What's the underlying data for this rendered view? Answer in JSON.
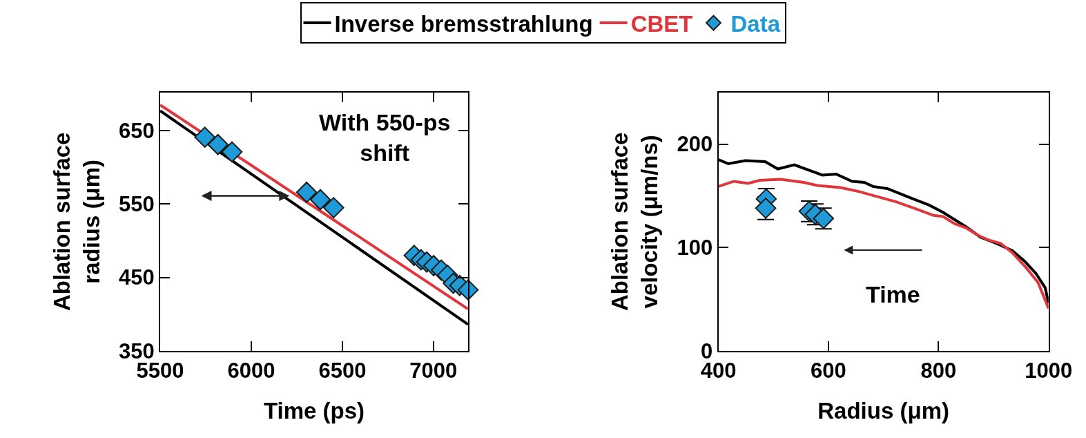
{
  "chart_data": [
    {
      "type": "line",
      "xlabel": "Time (ps)",
      "ylabel": "Ablation surface\nradius (μm)",
      "xlim": [
        5500,
        7190
      ],
      "xticks": [
        5500,
        6000,
        6500,
        7000
      ],
      "ylim": [
        350,
        702
      ],
      "yticks": [
        350,
        450,
        550,
        650
      ],
      "legend": "top",
      "annotations": [
        "With 550-ps\nshift"
      ],
      "series": [
        {
          "name": "Inverse bremsstrahlung",
          "color": "#000000",
          "marker": "none",
          "x": [
            5500,
            7190
          ],
          "values": [
            677,
            386
          ]
        },
        {
          "name": "CBET",
          "color": "#e0373c",
          "marker": "none",
          "x": [
            5500,
            7190
          ],
          "values": [
            685,
            407
          ]
        },
        {
          "name": "Data",
          "color": "#1f9ad6",
          "type": "scatter",
          "marker": "diamond",
          "x": [
            5745,
            5817,
            5894,
            6304,
            6379,
            6452,
            6894,
            6932,
            6963,
            7001,
            7043,
            7077,
            7109,
            7144,
            7190
          ],
          "values": [
            641,
            631,
            621,
            566,
            556,
            545,
            480,
            474,
            471,
            466,
            460,
            453,
            442,
            439,
            433
          ]
        }
      ]
    },
    {
      "type": "line",
      "xlabel": "Radius (μm)",
      "ylabel": "Ablation surface\nvelocity (μm/ns)",
      "xlim": [
        400,
        1000
      ],
      "xticks": [
        400,
        600,
        800,
        1000
      ],
      "ylim": [
        0,
        250
      ],
      "yticks": [
        0,
        100,
        200
      ],
      "annotations": [
        "Time"
      ],
      "series": [
        {
          "color": "#000000",
          "marker": "none",
          "x": [
            400,
            418,
            449,
            485,
            508,
            538,
            589,
            614,
            643,
            665,
            681,
            707,
            749,
            783,
            808,
            850,
            876,
            905,
            934,
            956,
            977,
            994,
            1000
          ],
          "values": [
            185,
            181,
            184,
            183,
            176,
            180,
            170,
            171,
            164,
            163,
            159,
            157,
            148,
            141,
            134,
            120,
            110,
            104,
            97,
            87,
            75,
            61,
            46
          ]
        },
        {
          "color": "#e0373c",
          "marker": "none",
          "x": [
            400,
            428,
            454,
            475,
            513,
            555,
            580,
            622,
            656,
            690,
            724,
            766,
            791,
            808,
            829,
            850,
            871,
            892,
            913,
            934,
            960,
            981,
            1000
          ],
          "values": [
            159,
            164,
            162,
            165,
            166,
            163,
            160,
            158,
            154,
            149,
            144,
            136,
            131,
            130,
            123,
            119,
            112,
            107,
            104,
            95,
            80,
            66,
            41
          ]
        },
        {
          "color": "#1f9ad6",
          "type": "scatter",
          "marker": "diamond",
          "x": [
            487,
            486,
            565,
            576,
            591
          ],
          "values": [
            147,
            138,
            135,
            132,
            128
          ],
          "errors": [
            10,
            11,
            10,
            10,
            10
          ]
        }
      ]
    }
  ]
}
